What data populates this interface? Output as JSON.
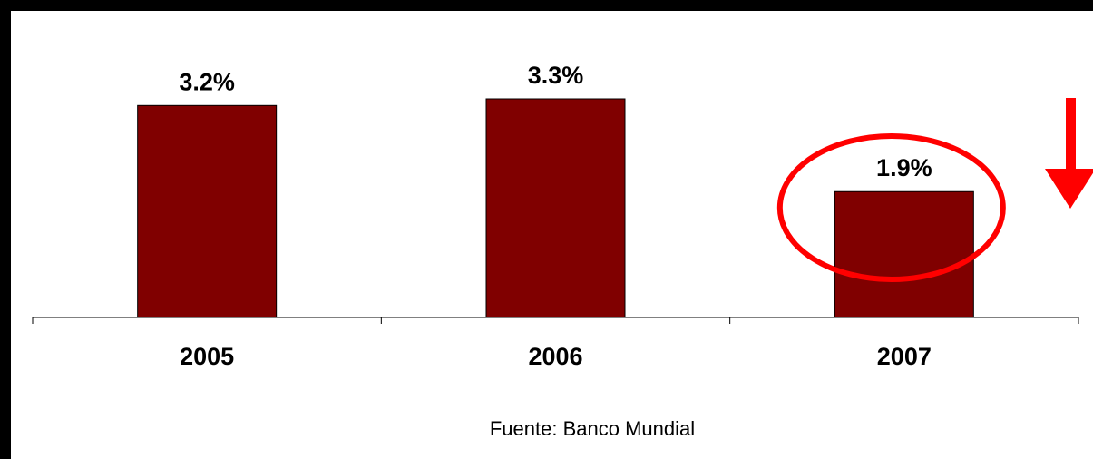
{
  "chart_data": {
    "type": "bar",
    "categories": [
      "2005",
      "2006",
      "2007"
    ],
    "values": [
      3.2,
      3.3,
      1.9
    ],
    "value_labels": [
      "3.2%",
      "3.3%",
      "1.9%"
    ],
    "title": "",
    "xlabel": "",
    "ylabel": "",
    "ylim": [
      0,
      3.3
    ],
    "grid": false,
    "legend": "none",
    "bar_color": "#800000",
    "highlight_color": "#ff0000",
    "highlighted_category": "2007",
    "annotation_arrow": "down",
    "source": "Fuente: Banco Mundial"
  },
  "colors": {
    "background": "#ffffff",
    "frame": "#000000",
    "bar": "#800000",
    "highlight": "#ff0000"
  }
}
